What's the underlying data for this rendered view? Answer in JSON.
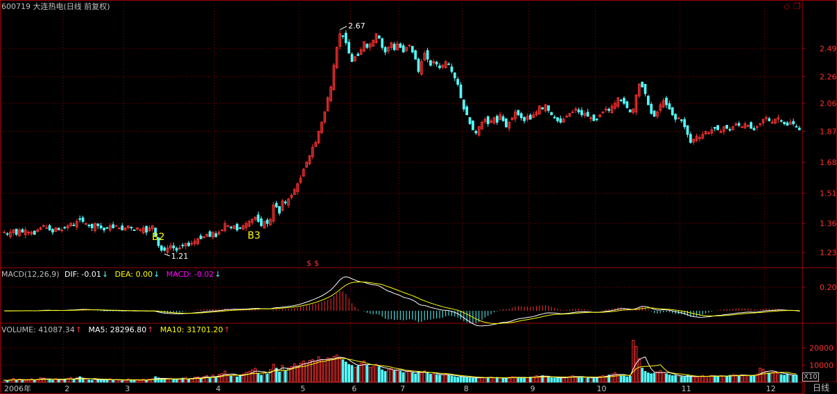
{
  "header": {
    "stock_code": "600719",
    "stock_name": "大连热电",
    "period": "(日线 前复权)"
  },
  "macd_header": {
    "label": "MACD(12,26,9)",
    "dif": "DIF: -0.01",
    "dea": "DEA: 0.00",
    "macd": "MACD: -0.02",
    "dif_arrow": "↓",
    "dea_arrow": "↓",
    "macd_arrow": "↓"
  },
  "volume_header": {
    "volume": "VOLUME: 41087.34",
    "ma5": "MA5: 28296.80",
    "ma10": "MA10: 31701.20",
    "vol_arrow": "↑",
    "ma5_arrow": "↑",
    "ma10_arrow": "↑"
  },
  "annotations": {
    "high": "2.67",
    "low": "1.21",
    "b2": "B2",
    "b3": "B3",
    "dollar": "$"
  },
  "colors": {
    "up": "#ff3232",
    "down": "#54ffff",
    "white": "#ffffff",
    "yellow": "#ffff00",
    "magenta": "#ff00ff",
    "grid": "#a00000"
  },
  "tab": {
    "label": "日线",
    "scale": "X10"
  },
  "chart_data": {
    "type": "candlestick",
    "price_axis_ticks": [
      "2.49",
      "2.26",
      "2.06",
      "1.87",
      "1.68",
      "1.51",
      "1.36",
      "1.23"
    ],
    "price_scale": "log",
    "price_range": [
      1.17,
      2.82
    ],
    "macd_axis_ticks": [
      "0.20"
    ],
    "macd_range": [
      -0.1,
      0.26
    ],
    "volume_axis_ticks": [
      "20000",
      "10000"
    ],
    "volume_range": [
      0,
      28000
    ],
    "x_labels": [
      "2006年",
      "2",
      "3",
      "4",
      "5",
      "6",
      "7",
      "8",
      "9",
      "10",
      "11",
      "12"
    ],
    "month_start_index": [
      0,
      20,
      40,
      70,
      98,
      115,
      131,
      152,
      174,
      196,
      224,
      252
    ],
    "closes": [
      1.32,
      1.31,
      1.32,
      1.33,
      1.31,
      1.33,
      1.32,
      1.33,
      1.32,
      1.32,
      1.31,
      1.33,
      1.34,
      1.35,
      1.34,
      1.33,
      1.32,
      1.34,
      1.33,
      1.33,
      1.34,
      1.35,
      1.36,
      1.35,
      1.37,
      1.38,
      1.37,
      1.36,
      1.35,
      1.34,
      1.36,
      1.35,
      1.34,
      1.33,
      1.34,
      1.35,
      1.34,
      1.35,
      1.34,
      1.33,
      1.34,
      1.35,
      1.34,
      1.33,
      1.34,
      1.33,
      1.34,
      1.32,
      1.34,
      1.35,
      1.3,
      1.26,
      1.24,
      1.24,
      1.25,
      1.26,
      1.25,
      1.24,
      1.25,
      1.26,
      1.27,
      1.26,
      1.27,
      1.28,
      1.29,
      1.29,
      1.3,
      1.31,
      1.3,
      1.32,
      1.3,
      1.32,
      1.33,
      1.36,
      1.35,
      1.34,
      1.35,
      1.33,
      1.34,
      1.35,
      1.36,
      1.37,
      1.38,
      1.39,
      1.37,
      1.35,
      1.37,
      1.36,
      1.38,
      1.45,
      1.44,
      1.41,
      1.47,
      1.46,
      1.48,
      1.5,
      1.53,
      1.56,
      1.59,
      1.64,
      1.68,
      1.72,
      1.77,
      1.8,
      1.87,
      1.93,
      2.0,
      2.1,
      2.18,
      2.35,
      2.5,
      2.62,
      2.6,
      2.54,
      2.45,
      2.38,
      2.42,
      2.43,
      2.48,
      2.55,
      2.5,
      2.53,
      2.56,
      2.62,
      2.58,
      2.5,
      2.46,
      2.5,
      2.54,
      2.48,
      2.53,
      2.5,
      2.46,
      2.5,
      2.52,
      2.46,
      2.4,
      2.3,
      2.38,
      2.45,
      2.4,
      2.35,
      2.38,
      2.36,
      2.33,
      2.35,
      2.38,
      2.36,
      2.3,
      2.25,
      2.2,
      2.1,
      2.02,
      1.98,
      1.92,
      1.88,
      1.86,
      1.9,
      1.93,
      1.95,
      1.92,
      1.94,
      1.96,
      1.93,
      1.98,
      1.94,
      1.9,
      1.93,
      1.96,
      2.0,
      1.98,
      1.96,
      1.94,
      1.97,
      1.95,
      1.98,
      2.0,
      2.04,
      2.02,
      2.05,
      2.01,
      1.98,
      1.96,
      1.94,
      1.93,
      1.95,
      1.97,
      1.99,
      2.0,
      2.02,
      2.0,
      1.98,
      1.99,
      1.97,
      1.96,
      1.94,
      1.95,
      1.98,
      2.0,
      2.02,
      2.01,
      2.04,
      2.06,
      2.1,
      2.08,
      2.06,
      2.03,
      2.0,
      2.02,
      2.12,
      2.2,
      2.18,
      2.13,
      2.05,
      1.99,
      1.97,
      2.0,
      2.05,
      2.08,
      2.05,
      2.02,
      1.98,
      1.95,
      1.96,
      1.94,
      1.9,
      1.85,
      1.8,
      1.82,
      1.84,
      1.83,
      1.85,
      1.87,
      1.86,
      1.88,
      1.89,
      1.88,
      1.87,
      1.9,
      1.89,
      1.88,
      1.9,
      1.92,
      1.91,
      1.9,
      1.92,
      1.91,
      1.89,
      1.88,
      1.9,
      1.92,
      1.95,
      1.96,
      1.94,
      1.93,
      1.95,
      1.96,
      1.94,
      1.92,
      1.91,
      1.93,
      1.92,
      1.9,
      1.88
    ],
    "volumes": [
      1200,
      900,
      1500,
      2200,
      1100,
      1800,
      1300,
      900,
      1600,
      2000,
      1200,
      1700,
      2600,
      2400,
      1800,
      1300,
      1100,
      2100,
      1600,
      1200,
      1900,
      2300,
      2800,
      1400,
      2600,
      3200,
      2100,
      1700,
      1300,
      1100,
      2200,
      1500,
      1200,
      1000,
      1700,
      2000,
      1300,
      1600,
      1100,
      900,
      1400,
      1900,
      1200,
      1000,
      1500,
      1100,
      1700,
      1000,
      1800,
      2100,
      3200,
      2500,
      1800,
      1500,
      1900,
      2300,
      1600,
      1300,
      1900,
      2400,
      2800,
      1700,
      2200,
      2900,
      3100,
      2400,
      3300,
      3900,
      2200,
      4200,
      2800,
      4600,
      5000,
      6500,
      4200,
      3600,
      4400,
      3100,
      3800,
      4800,
      5800,
      6200,
      7200,
      8100,
      5200,
      4100,
      6000,
      4800,
      7400,
      10500,
      8200,
      5900,
      9800,
      6900,
      8400,
      9200,
      10800,
      9700,
      11200,
      12400,
      11000,
      12800,
      13200,
      12400,
      14800,
      13100,
      12200,
      14200,
      13800,
      15100,
      15900,
      14200,
      13100,
      11800,
      10400,
      9800,
      8700,
      9500,
      11200,
      12400,
      9800,
      8800,
      9100,
      10500,
      8900,
      7200,
      6300,
      7400,
      8100,
      6600,
      7200,
      6400,
      5600,
      6100,
      6700,
      5500,
      4800,
      6200,
      5800,
      6600,
      5300,
      4700,
      4900,
      4400,
      4100,
      4300,
      4700,
      4200,
      3600,
      3200,
      2900,
      3400,
      3100,
      2700,
      2500,
      2300,
      2600,
      2800,
      2900,
      2500,
      2700,
      3000,
      2400,
      2800,
      2300,
      2200,
      2500,
      2900,
      3300,
      3000,
      2700,
      2400,
      2800,
      2600,
      3000,
      3200,
      3900,
      3500,
      3800,
      3300,
      2900,
      2600,
      2400,
      2300,
      2700,
      2900,
      3100,
      3400,
      3800,
      3300,
      2900,
      3100,
      2800,
      2600,
      2400,
      2500,
      3000,
      3400,
      3900,
      3600,
      4200,
      4800,
      5500,
      4600,
      3900,
      3500,
      3100,
      3400,
      24500,
      21000,
      13800,
      8200,
      6300,
      5400,
      4900,
      5300,
      6000,
      6800,
      5700,
      4900,
      4300,
      3800,
      3900,
      3600,
      3300,
      3100,
      3900,
      3500,
      3200,
      3100,
      3400,
      3800,
      3500,
      3600,
      3900,
      3700,
      3400,
      3800,
      3600,
      3400,
      4000,
      4500,
      4200,
      3800,
      4300,
      4100,
      3800,
      3600,
      4100,
      4800,
      8200,
      7600,
      6200,
      5400,
      5900,
      6300,
      5100,
      4400,
      4100,
      4600,
      4300,
      3900,
      4100
    ]
  }
}
